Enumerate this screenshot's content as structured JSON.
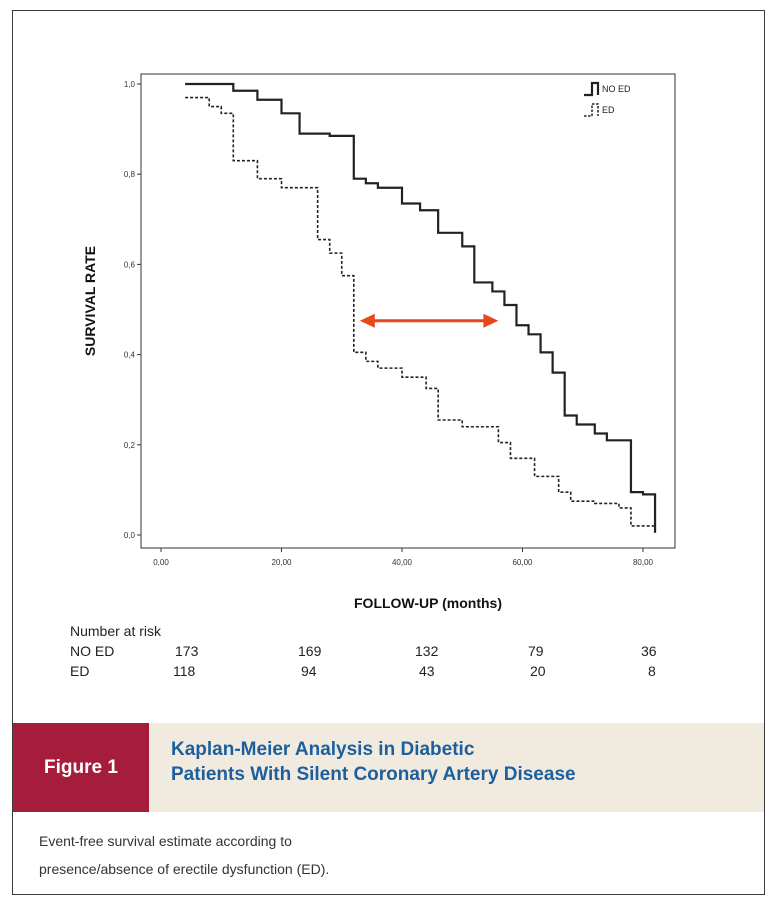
{
  "chart_data": {
    "type": "line",
    "title": "",
    "xlabel": "FOLLOW-UP (months)",
    "ylabel": "SURVIVAL RATE",
    "xlim": [
      0,
      85
    ],
    "ylim": [
      0,
      1
    ],
    "x_ticks": [
      0,
      20,
      40,
      60,
      80
    ],
    "x_tick_labels": [
      "0,00",
      "20,00",
      "40,00",
      "60,00",
      "80,00"
    ],
    "y_ticks": [
      0,
      0.2,
      0.4,
      0.6,
      0.8,
      1.0
    ],
    "y_tick_labels": [
      "0,0",
      "0,2",
      "0,4",
      "0,6",
      "0,8",
      "1,0"
    ],
    "grid": false,
    "legend_position": "top-right",
    "series": [
      {
        "name": "NO ED",
        "style": "solid",
        "x": [
          4,
          12,
          16,
          20,
          23,
          28,
          32,
          34,
          36,
          40,
          43,
          46,
          50,
          52,
          55,
          57,
          59,
          61,
          63,
          65,
          67,
          69,
          72,
          74,
          78,
          80,
          82
        ],
        "y": [
          1.0,
          0.985,
          0.965,
          0.935,
          0.89,
          0.885,
          0.79,
          0.78,
          0.77,
          0.735,
          0.72,
          0.67,
          0.64,
          0.56,
          0.54,
          0.51,
          0.465,
          0.445,
          0.405,
          0.36,
          0.265,
          0.245,
          0.225,
          0.21,
          0.095,
          0.09,
          0.005
        ]
      },
      {
        "name": "ED",
        "style": "dashed",
        "x": [
          4,
          8,
          10,
          12,
          16,
          20,
          26,
          28,
          30,
          32,
          34,
          36,
          40,
          44,
          46,
          50,
          56,
          58,
          62,
          66,
          68,
          72,
          76,
          78,
          82
        ],
        "y": [
          0.97,
          0.95,
          0.935,
          0.83,
          0.79,
          0.77,
          0.655,
          0.625,
          0.575,
          0.405,
          0.385,
          0.37,
          0.35,
          0.325,
          0.255,
          0.24,
          0.205,
          0.17,
          0.13,
          0.095,
          0.075,
          0.07,
          0.06,
          0.02,
          0.005
        ]
      }
    ],
    "annotations": [
      {
        "type": "double-arrow",
        "color": "#e8471e",
        "x_from": 33,
        "x_to": 56,
        "y": 0.475
      }
    ]
  },
  "risk_table": {
    "title": "Number at risk",
    "rows": [
      {
        "label": "NO ED",
        "values": [
          "173",
          "169",
          "132",
          "79",
          "36"
        ]
      },
      {
        "label": "ED",
        "values": [
          "118",
          "94",
          "43",
          "20",
          "8"
        ]
      }
    ]
  },
  "figure": {
    "label": "Figure 1",
    "title_line1": "Kaplan-Meier Analysis in Diabetic",
    "title_line2": "Patients With Silent Coronary Artery Disease",
    "caption_line1": "Event-free survival estimate according to",
    "caption_line2": "presence/absence of erectile dysfunction (ED)."
  },
  "colors": {
    "label_bg": "#a51d3a",
    "title_text": "#1d5f9e",
    "bar_bg": "#f1ebdf",
    "arrow": "#e8471e"
  }
}
